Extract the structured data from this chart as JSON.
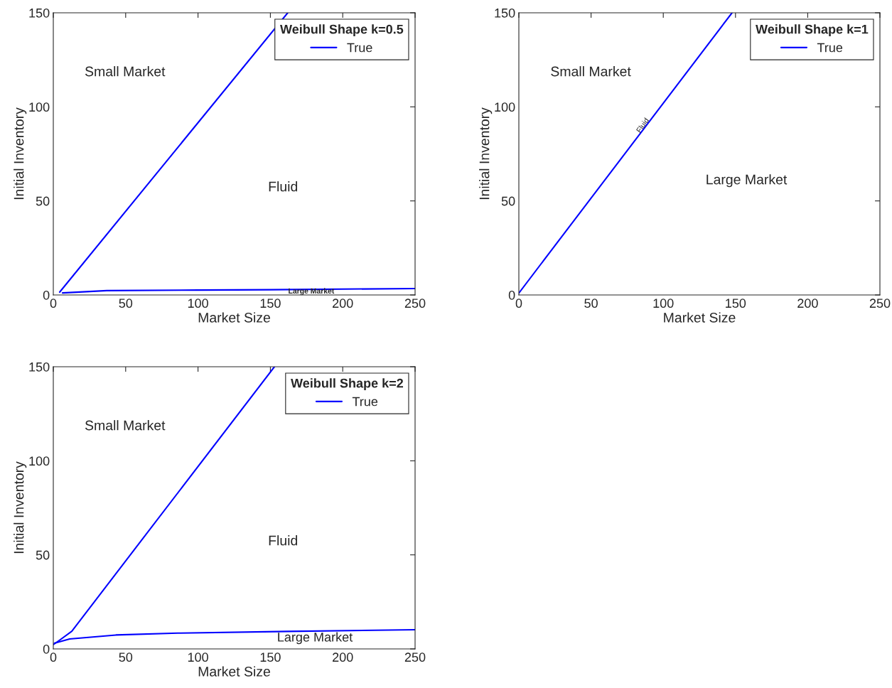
{
  "chart_data": [
    {
      "type": "line",
      "xlabel": "Market Size",
      "ylabel": "Initial Inventory",
      "legend_title": "Weibull Shape k=0.5",
      "legend": "top right",
      "grid": false,
      "xlim": [
        0,
        250
      ],
      "xticks": [
        0,
        50,
        100,
        150,
        200,
        250
      ],
      "ylim": [
        0,
        150
      ],
      "yticks": [
        0,
        50,
        100,
        150
      ],
      "series": [
        {
          "name": "True",
          "color": "#0000ff",
          "x": [
            4.4,
            162
          ],
          "values": [
            1.5,
            150
          ]
        },
        {
          "color": "#0000ff",
          "x": [
            6.4,
            37,
            100,
            150,
            250
          ],
          "values": [
            1.1,
            2.3,
            2.6,
            2.8,
            3.4
          ]
        }
      ],
      "annotations": [
        "Small Market",
        "Fluid",
        "Large Market"
      ]
    },
    {
      "type": "line",
      "xlabel": "Market Size",
      "ylabel": "Initial Inventory",
      "legend_title": "Weibull Shape k=1",
      "legend": "top right",
      "grid": false,
      "xlim": [
        0,
        250
      ],
      "xticks": [
        0,
        50,
        100,
        150,
        200,
        250
      ],
      "ylim": [
        0,
        150
      ],
      "yticks": [
        0,
        50,
        100,
        150
      ],
      "series": [
        {
          "name": "True",
          "color": "#0000ff",
          "x": [
            0,
            147.6
          ],
          "values": [
            1,
            150
          ]
        }
      ],
      "annotations": [
        "Small Market",
        "Large Market",
        "Fluid"
      ]
    },
    {
      "type": "line",
      "xlabel": "Market Size",
      "ylabel": "Initial Inventory",
      "legend_title": "Weibull Shape k=2",
      "legend": "top right",
      "grid": false,
      "xlim": [
        0,
        250
      ],
      "xticks": [
        0,
        50,
        100,
        150,
        200,
        250
      ],
      "ylim": [
        0,
        150
      ],
      "yticks": [
        0,
        50,
        100,
        150
      ],
      "series": [
        {
          "name": "True",
          "color": "#0000ff",
          "x": [
            0,
            5,
            12.8,
            152.8
          ],
          "values": [
            2.3,
            5,
            9.4,
            150
          ]
        },
        {
          "color": "#0000ff",
          "x": [
            0.7,
            11.3,
            43.2,
            86,
            162,
            250
          ],
          "values": [
            3.0,
            5.3,
            7.4,
            8.4,
            9.3,
            10.2
          ]
        }
      ],
      "annotations": [
        "Small Market",
        "Fluid",
        "Large Market"
      ]
    }
  ]
}
